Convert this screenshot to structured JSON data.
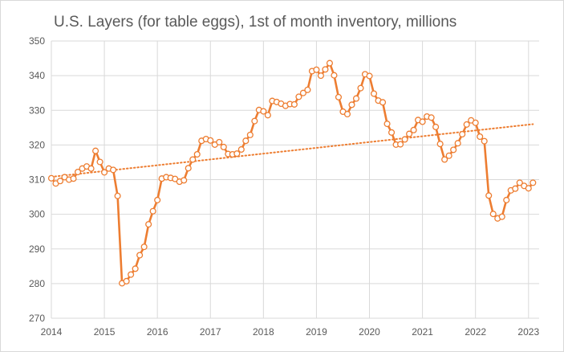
{
  "chart_data": {
    "type": "line",
    "title": "U.S. Layers (for table eggs), 1st of month inventory, millions",
    "xlabel": "",
    "ylabel": "",
    "ylim": [
      270,
      350
    ],
    "y_ticks": [
      "270",
      "280",
      "290",
      "300",
      "310",
      "320",
      "330",
      "340",
      "350"
    ],
    "x_ticks": [
      "2014",
      "2015",
      "2016",
      "2017",
      "2018",
      "2019",
      "2020",
      "2021",
      "2022",
      "2023"
    ],
    "grid": "horizontal",
    "legend": "none",
    "colors": {
      "series": "#ed7d31",
      "marker_fill": "#ffffff",
      "grid": "#d9d9d9",
      "text": "#595959"
    },
    "series": [
      {
        "x_start": "2014-01",
        "frequency": "monthly",
        "values": [
          310.4,
          308.9,
          309.6,
          310.7,
          310.0,
          310.3,
          312.2,
          313.2,
          313.8,
          313.2,
          318.3,
          315.1,
          312.1,
          313.2,
          312.8,
          305.3,
          280.1,
          280.7,
          282.6,
          284.3,
          288.2,
          290.6,
          297.1,
          300.9,
          304.1,
          310.3,
          310.7,
          310.5,
          310.2,
          309.4,
          309.8,
          313.3,
          315.8,
          317.3,
          321.2,
          321.7,
          321.3,
          320.1,
          320.8,
          319.4,
          317.4,
          317.3,
          317.5,
          318.7,
          321.2,
          322.9,
          326.9,
          330.1,
          329.7,
          328.6,
          332.7,
          332.4,
          331.9,
          331.3,
          331.8,
          331.7,
          333.9,
          335.0,
          335.9,
          341.3,
          341.7,
          340.0,
          341.8,
          343.6,
          340.1,
          333.8,
          329.6,
          328.9,
          331.6,
          333.4,
          336.4,
          340.4,
          339.9,
          334.8,
          332.8,
          332.3,
          326.1,
          323.6,
          320.1,
          320.2,
          321.6,
          323.2,
          324.3,
          327.2,
          326.7,
          328.2,
          327.9,
          325.2,
          320.3,
          315.8,
          316.9,
          318.6,
          320.5,
          323.1,
          325.9,
          327.1,
          326.4,
          322.4,
          321.1,
          305.4,
          300.1,
          298.8,
          299.3,
          304.1,
          306.9,
          307.4,
          309.1,
          308.2,
          307.5,
          309.1
        ]
      }
    ],
    "trendline": {
      "type": "linear",
      "style": "dotted",
      "start_value": 310.8,
      "end_value": 326.0
    }
  }
}
